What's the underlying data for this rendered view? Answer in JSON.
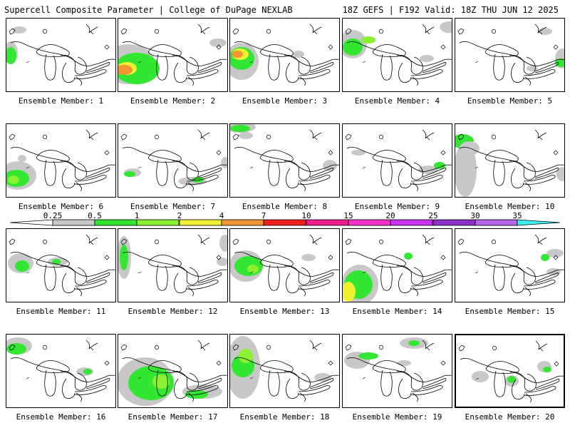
{
  "header": {
    "left_title": "Supercell Composite Parameter | College of DuPage NEXLAB",
    "right_title": "18Z GEFS | F192 Valid: 18Z THU JUN 12 2025"
  },
  "legend": {
    "labels": [
      "0.25",
      "0.5",
      "1",
      "2",
      "4",
      "7",
      "10",
      "15",
      "20",
      "25",
      "30",
      "35"
    ],
    "colors": [
      "#c8c8c8",
      "#32e632",
      "#8cf032",
      "#f0f032",
      "#f09632",
      "#f01e1e",
      "#f01e8c",
      "#f032c8",
      "#c832f0",
      "#8c32c8",
      "#b464e6",
      "#3cf0f0"
    ]
  },
  "map_colors": {
    "gray": "#c8c8c8",
    "green": "#32e632",
    "lime": "#8cf032",
    "yellow": "#f0f032",
    "orange": "#f09632",
    "red": "#f01e1e"
  },
  "panels": [
    {
      "label": "Ensemble Member: 1"
    },
    {
      "label": "Ensemble Member: 2"
    },
    {
      "label": "Ensemble Member: 3"
    },
    {
      "label": "Ensemble Member: 4"
    },
    {
      "label": "Ensemble Member: 5"
    },
    {
      "label": "Ensemble Member: 6"
    },
    {
      "label": "Ensemble Member: 7"
    },
    {
      "label": "Ensemble Member: 8"
    },
    {
      "label": "Ensemble Member: 9"
    },
    {
      "label": "Ensemble Member: 10"
    },
    {
      "label": "Ensemble Member: 11"
    },
    {
      "label": "Ensemble Member: 12"
    },
    {
      "label": "Ensemble Member: 13"
    },
    {
      "label": "Ensemble Member: 14"
    },
    {
      "label": "Ensemble Member: 15"
    },
    {
      "label": "Ensemble Member: 16"
    },
    {
      "label": "Ensemble Member: 17"
    },
    {
      "label": "Ensemble Member: 18"
    },
    {
      "label": "Ensemble Member: 19"
    },
    {
      "label": "Ensemble Member: 20"
    }
  ]
}
